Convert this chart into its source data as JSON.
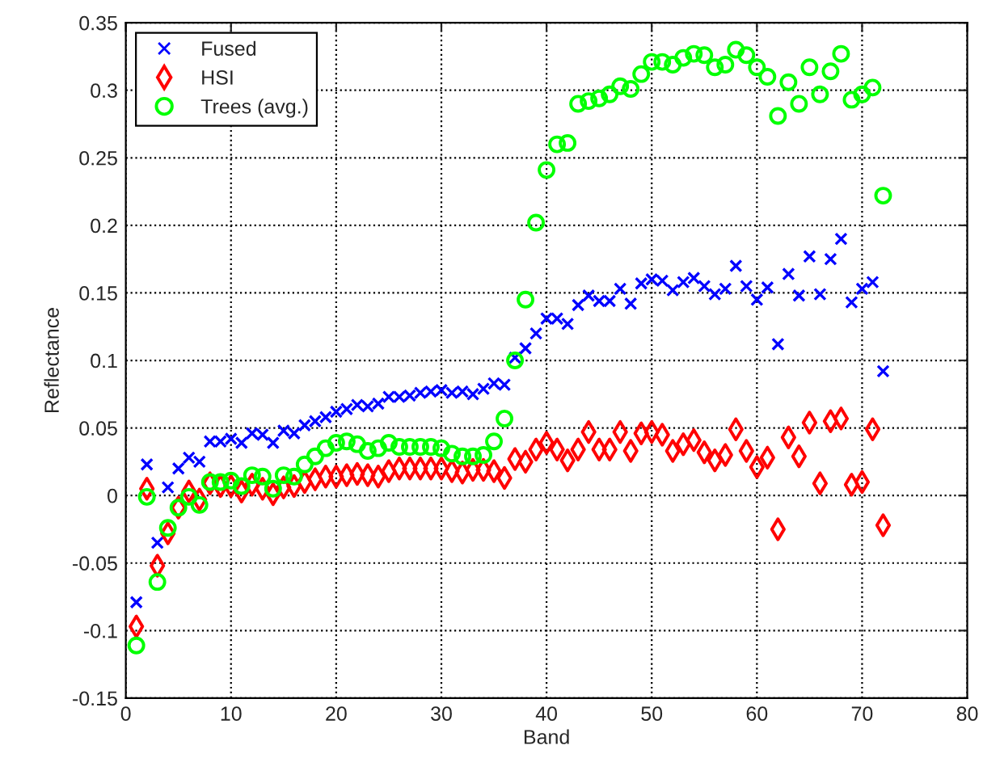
{
  "chart_data": {
    "type": "scatter",
    "xlabel": "Band",
    "ylabel": "Reflectance",
    "x": [
      1,
      2,
      3,
      4,
      5,
      6,
      7,
      8,
      9,
      10,
      11,
      12,
      13,
      14,
      15,
      16,
      17,
      18,
      19,
      20,
      21,
      22,
      23,
      24,
      25,
      26,
      27,
      28,
      29,
      30,
      31,
      32,
      33,
      34,
      35,
      36,
      37,
      38,
      39,
      40,
      41,
      42,
      43,
      44,
      45,
      46,
      47,
      48,
      49,
      50,
      51,
      52,
      53,
      54,
      55,
      56,
      57,
      58,
      59,
      60,
      61,
      62,
      63,
      64,
      65,
      66,
      67,
      68,
      69,
      70,
      71,
      72
    ],
    "series": [
      {
        "name": "Fused",
        "color": "#0000ff",
        "marker": "cross",
        "values": [
          -0.079,
          0.023,
          -0.035,
          0.006,
          0.02,
          0.028,
          0.025,
          0.04,
          0.04,
          0.042,
          0.039,
          0.046,
          0.045,
          0.039,
          0.048,
          0.046,
          0.052,
          0.055,
          0.058,
          0.062,
          0.064,
          0.067,
          0.066,
          0.068,
          0.073,
          0.073,
          0.074,
          0.076,
          0.077,
          0.078,
          0.076,
          0.077,
          0.075,
          0.079,
          0.083,
          0.082,
          0.102,
          0.109,
          0.12,
          0.131,
          0.131,
          0.127,
          0.141,
          0.148,
          0.144,
          0.144,
          0.153,
          0.142,
          0.157,
          0.16,
          0.159,
          0.152,
          0.158,
          0.161,
          0.155,
          0.149,
          0.153,
          0.17,
          0.155,
          0.145,
          0.154,
          0.112,
          0.164,
          0.148,
          0.177,
          0.149,
          0.175,
          0.19,
          0.143,
          0.153,
          0.158,
          0.092
        ]
      },
      {
        "name": "HSI",
        "color": "#ff0000",
        "marker": "diamond",
        "values": [
          -0.097,
          0.005,
          -0.052,
          -0.028,
          -0.009,
          0.003,
          -0.003,
          0.009,
          0.007,
          0.007,
          0.003,
          0.008,
          0.005,
          0.001,
          0.006,
          0.007,
          0.01,
          0.012,
          0.014,
          0.014,
          0.015,
          0.016,
          0.015,
          0.014,
          0.018,
          0.02,
          0.02,
          0.02,
          0.02,
          0.02,
          0.018,
          0.017,
          0.019,
          0.019,
          0.018,
          0.013,
          0.027,
          0.025,
          0.034,
          0.039,
          0.034,
          0.026,
          0.034,
          0.047,
          0.034,
          0.034,
          0.047,
          0.033,
          0.046,
          0.047,
          0.045,
          0.033,
          0.038,
          0.041,
          0.032,
          0.026,
          0.03,
          0.049,
          0.033,
          0.021,
          0.028,
          -0.025,
          0.043,
          0.029,
          0.054,
          0.009,
          0.055,
          0.057,
          0.008,
          0.01,
          0.049,
          -0.022
        ]
      },
      {
        "name": "Trees (avg.)",
        "color": "#00ff00",
        "marker": "circle",
        "values": [
          -0.111,
          -0.001,
          -0.064,
          -0.024,
          -0.009,
          -0.001,
          -0.007,
          0.01,
          0.01,
          0.011,
          0.007,
          0.015,
          0.014,
          0.005,
          0.015,
          0.014,
          0.023,
          0.029,
          0.035,
          0.039,
          0.04,
          0.038,
          0.033,
          0.035,
          0.039,
          0.036,
          0.036,
          0.036,
          0.036,
          0.035,
          0.031,
          0.029,
          0.029,
          0.03,
          0.04,
          0.057,
          0.1,
          0.145,
          0.202,
          0.241,
          0.26,
          0.261,
          0.29,
          0.292,
          0.294,
          0.297,
          0.303,
          0.301,
          0.312,
          0.321,
          0.321,
          0.319,
          0.324,
          0.327,
          0.326,
          0.317,
          0.319,
          0.33,
          0.326,
          0.317,
          0.31,
          0.281,
          0.306,
          0.29,
          0.317,
          0.297,
          0.314,
          0.327,
          0.293,
          0.297,
          0.302,
          0.222
        ]
      }
    ],
    "xlim": [
      0,
      80
    ],
    "xticks": [
      0,
      10,
      20,
      30,
      40,
      50,
      60,
      70,
      80
    ],
    "ylim": [
      -0.15,
      0.35
    ],
    "yticks": [
      -0.15,
      -0.1,
      -0.05,
      0,
      0.05,
      0.1,
      0.15,
      0.2,
      0.25,
      0.3,
      0.35
    ],
    "grid": true,
    "legend": "top left"
  }
}
